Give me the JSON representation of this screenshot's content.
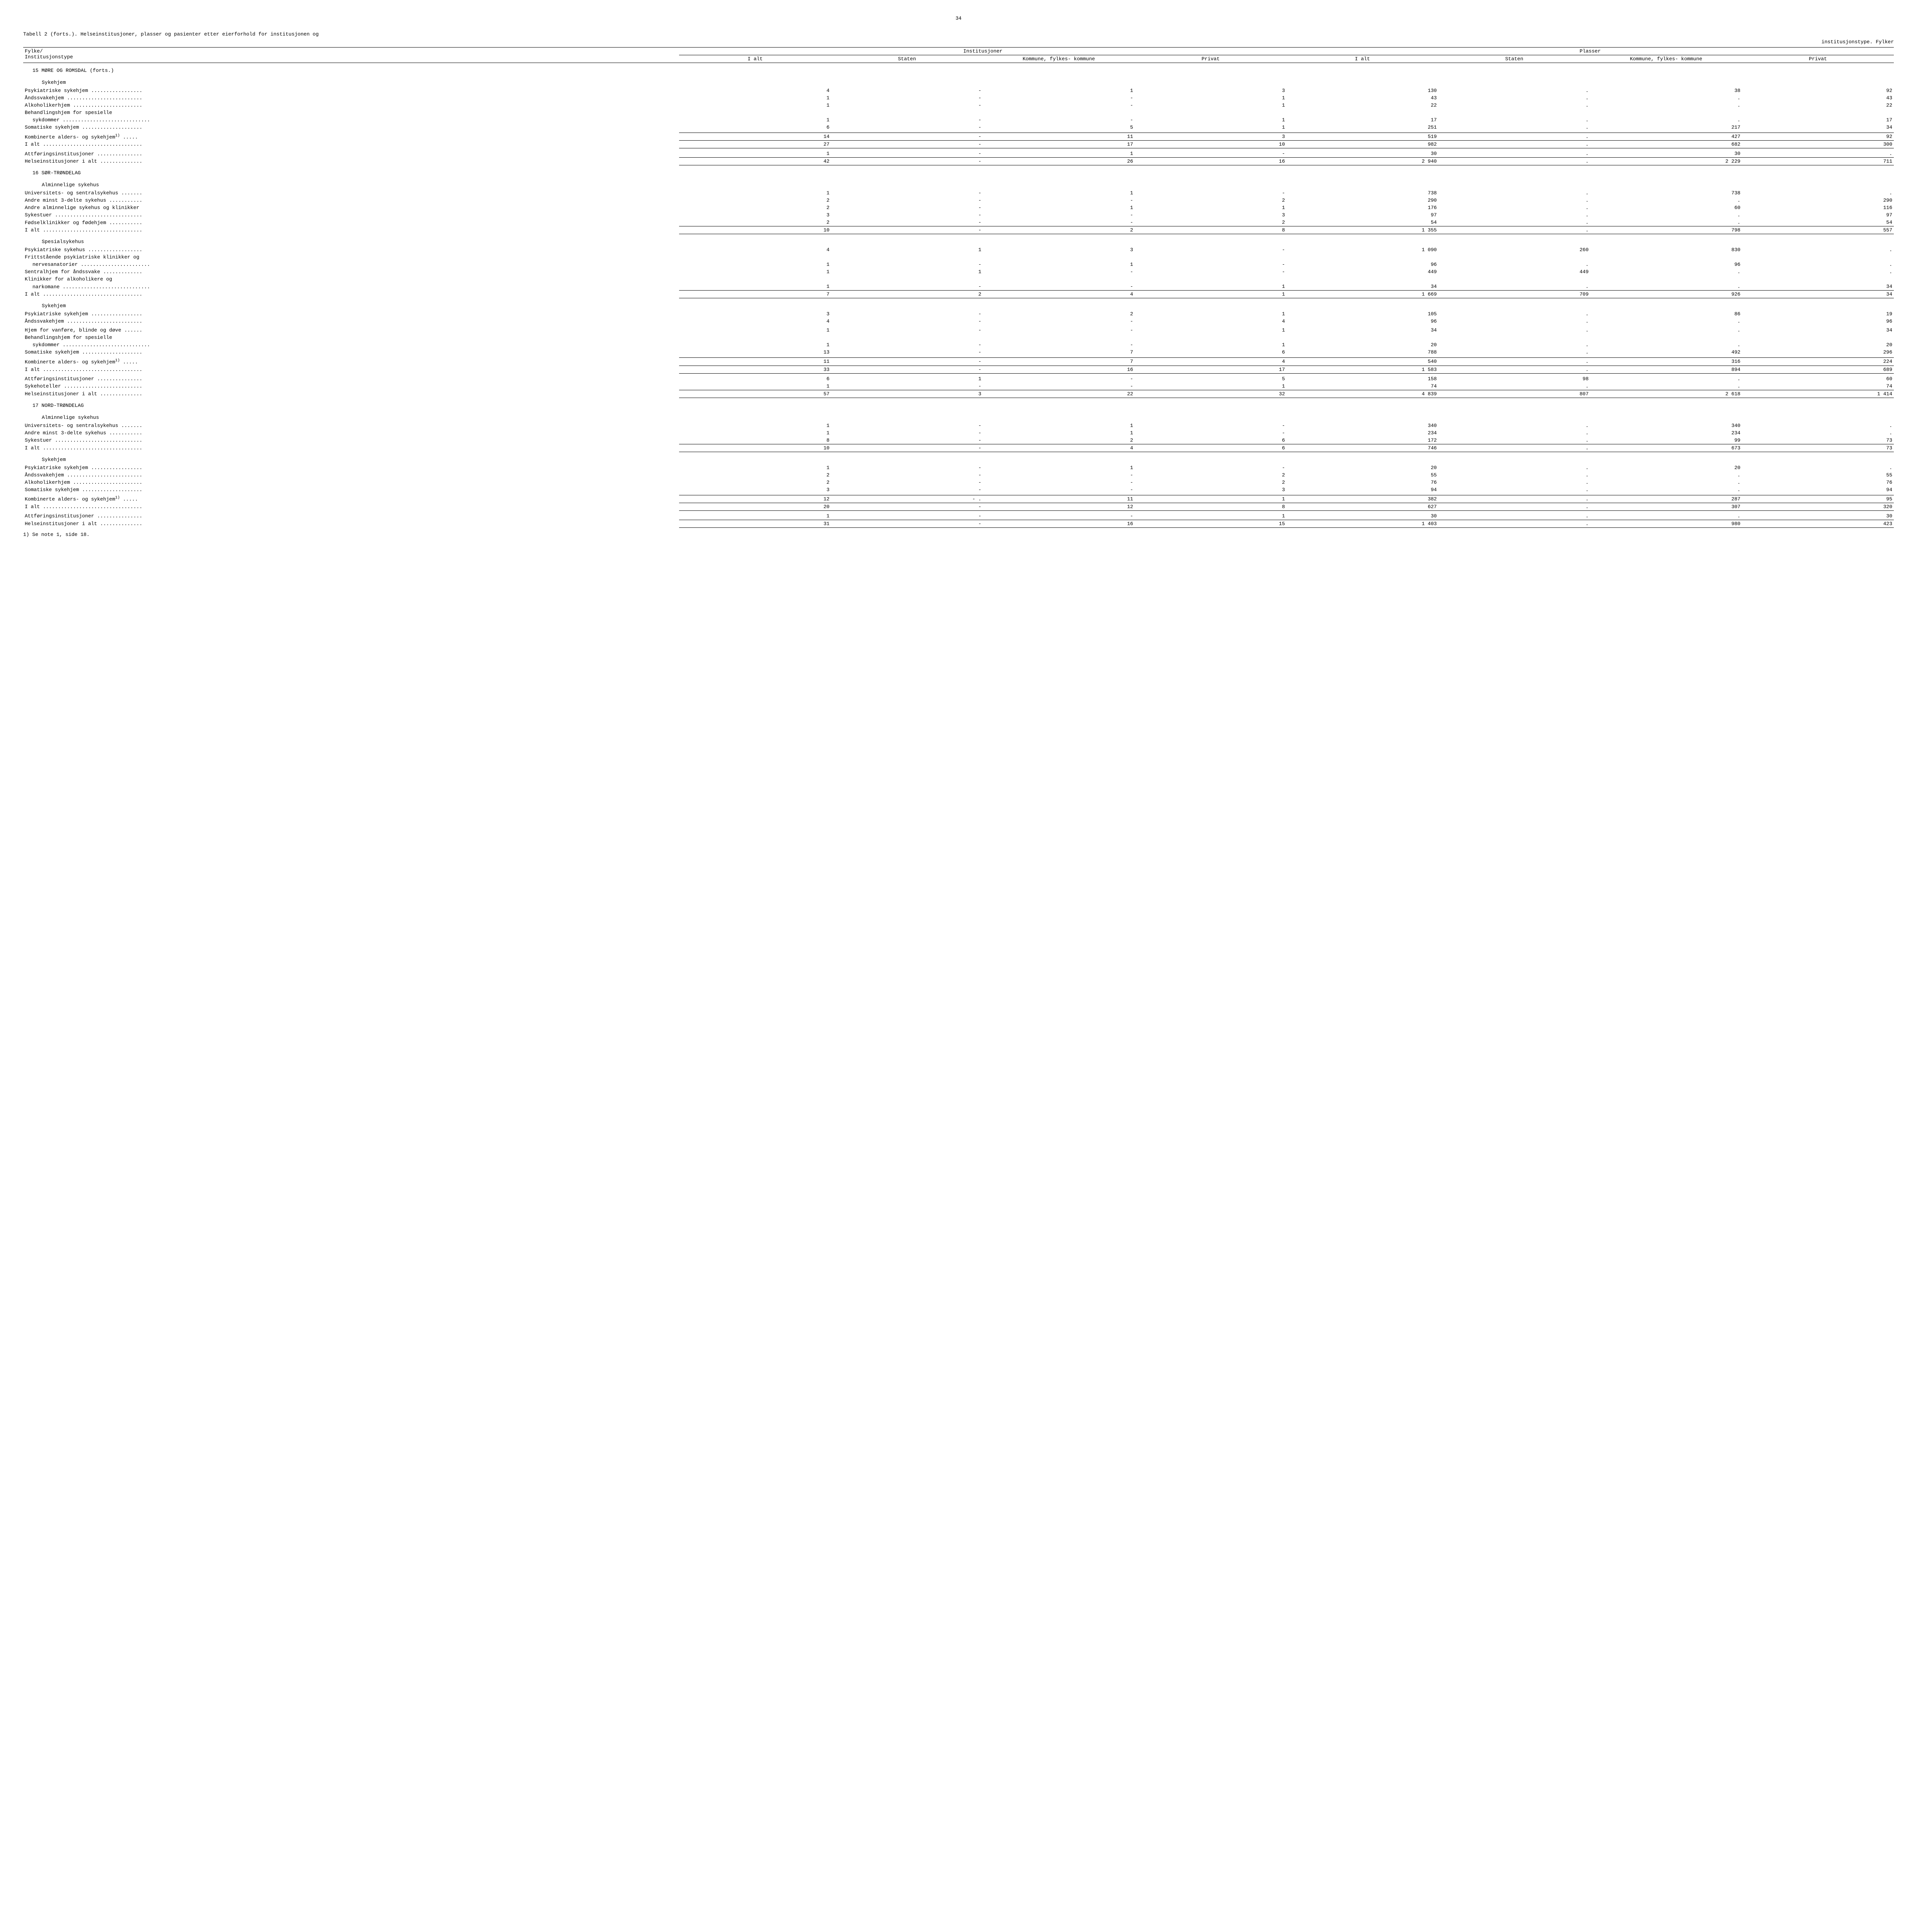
{
  "page_number": "34",
  "title_line1": "Tabell 2 (forts.).  Helseinstitusjoner, plasser og pasienter etter eierforhold for institusjonen og",
  "title_line2": "institusjonstype.  Fylker",
  "header": {
    "fylke": "Fylke/",
    "institusjonstype": "Institusjonstype",
    "group1": "Institusjoner",
    "group2": "Plasser",
    "cols": [
      "I alt",
      "Staten",
      "Kommune, fylkes- kommune",
      "Privat",
      "I alt",
      "Staten",
      "Kommune, fylkes- kommune",
      "Privat"
    ]
  },
  "footnote_ref": "1)",
  "footnote": "1) Se note 1, side 18.",
  "labels": {
    "sec15": "15  MØRE OG ROMSDAL (forts.)",
    "sec16": "16  SØR-TRØNDELAG",
    "sec17": "17  NORD-TRØNDELAG",
    "sykehjem": "Sykehjem",
    "alminnelige_sykehus": "Alminnelige sykehus",
    "spesialsykehus": "Spesialsykehus",
    "psyk_sykehjem": "Psykiatriske sykehjem",
    "andssvakehjem": "Åndssvakehjem",
    "alkoholikerhjem": "Alkoholikerhjem",
    "beh_spesielle": "Behandlingshjem for spesielle",
    "sykdommer": "sykdommer",
    "som_sykehjem": "Somatiske sykehjem",
    "komb_alders": "Kombinerte alders- og sykehjem",
    "i_alt": "I alt",
    "attforing": "Attføringsinstitusjoner",
    "helse_ialt": "Helseinstitusjoner i alt",
    "univ_sentral": "Universitets- og sentralsykehus",
    "andre_3delte": "Andre minst 3-delte sykehus",
    "andre_alm": "Andre alminnelige sykehus og klinikker",
    "sykestuer": "Sykestuer",
    "fodsel": "Fødselklinikker og fødehjem",
    "psyk_sykehus": "Psykiatriske sykehus",
    "fritt_psyk": "Frittstående psykiatriske klinikker og",
    "nervesanatorier": "nervesanatorier",
    "sentral_andssvake": "Sentralhjem for åndssvake",
    "klinikker_alk": "Klinikker for alkoholikere og",
    "narkomane": "narkomane",
    "hjem_vanfore": "Hjem for vanføre, blinde og døve",
    "sykehoteller": "Sykehoteller"
  },
  "rows": [
    {
      "type": "section",
      "label": "sec15"
    },
    {
      "type": "sub",
      "label": "sykehjem"
    },
    {
      "type": "data",
      "label": "psyk_sykehjem",
      "d": [
        "4",
        "-",
        "1",
        "3",
        "130",
        ".",
        "38",
        "92"
      ]
    },
    {
      "type": "data",
      "label": "andssvakehjem",
      "d": [
        "1",
        "-",
        "-",
        "1",
        "43",
        ".",
        ".",
        "43"
      ]
    },
    {
      "type": "data",
      "label": "alkoholikerhjem",
      "d": [
        "1",
        "-",
        "-",
        "1",
        "22",
        ".",
        ".",
        "22"
      ]
    },
    {
      "type": "plain",
      "label": "beh_spesielle",
      "d": [
        "",
        "",
        "",
        "",
        "",
        "",
        "",
        ""
      ]
    },
    {
      "type": "data_cont",
      "label": "sykdommer",
      "d": [
        "1",
        "-",
        "-",
        "1",
        "17",
        ".",
        ".",
        "17"
      ]
    },
    {
      "type": "data",
      "label": "som_sykehjem",
      "d": [
        "6",
        "-",
        "5",
        "1",
        "251",
        ".",
        "217",
        "34"
      ]
    },
    {
      "type": "space"
    },
    {
      "type": "data_sup",
      "label": "komb_alders",
      "d": [
        "14",
        "-",
        "11",
        "3",
        "519",
        ".",
        "427",
        "92"
      ],
      "rule": "both"
    },
    {
      "type": "data",
      "label": "i_alt",
      "d": [
        "27",
        "-",
        "17",
        "10",
        "982",
        ".",
        "682",
        "300"
      ],
      "rule": "bottom"
    },
    {
      "type": "space"
    },
    {
      "type": "data",
      "label": "attforing",
      "d": [
        "1",
        "-",
        "1",
        "-",
        "30",
        ".",
        "30",
        "."
      ],
      "rule": "bottom"
    },
    {
      "type": "data",
      "label": "helse_ialt",
      "d": [
        "42",
        "-",
        "26",
        "16",
        "2 940",
        ".",
        "2 229",
        "711"
      ],
      "rule": "bottom"
    },
    {
      "type": "section",
      "label": "sec16"
    },
    {
      "type": "sub",
      "label": "alminnelige_sykehus"
    },
    {
      "type": "data",
      "label": "univ_sentral",
      "d": [
        "1",
        "-",
        "1",
        "-",
        "738",
        ".",
        "738",
        "."
      ]
    },
    {
      "type": "data",
      "label": "andre_3delte",
      "d": [
        "2",
        "-",
        "-",
        "2",
        "290",
        ".",
        ".",
        "290"
      ]
    },
    {
      "type": "plain_data",
      "label": "andre_alm",
      "d": [
        "2",
        "-",
        "1",
        "1",
        "176",
        ".",
        "60",
        "116"
      ]
    },
    {
      "type": "data",
      "label": "sykestuer",
      "d": [
        "3",
        "-",
        "-",
        "3",
        "97",
        ".",
        ".",
        "97"
      ]
    },
    {
      "type": "data",
      "label": "fodsel",
      "d": [
        "2",
        "-",
        "-",
        "2",
        "54",
        ".",
        ".",
        "54"
      ],
      "rule": "bottom"
    },
    {
      "type": "data",
      "label": "i_alt",
      "d": [
        "10",
        "-",
        "2",
        "8",
        "1 355",
        ".",
        "798",
        "557"
      ],
      "rule": "bottom"
    },
    {
      "type": "sub",
      "label": "spesialsykehus"
    },
    {
      "type": "data",
      "label": "psyk_sykehus",
      "d": [
        "4",
        "1",
        "3",
        "-",
        "1 090",
        "260",
        "830",
        "."
      ]
    },
    {
      "type": "plain",
      "label": "fritt_psyk",
      "d": [
        "",
        "",
        "",
        "",
        "",
        "",
        "",
        ""
      ]
    },
    {
      "type": "data_cont",
      "label": "nervesanatorier",
      "d": [
        "1",
        "-",
        "1",
        "-",
        "96",
        ".",
        "96",
        "."
      ]
    },
    {
      "type": "data",
      "label": "sentral_andssvake",
      "d": [
        "1",
        "1",
        "-",
        "-",
        "449",
        "449",
        ".",
        "."
      ]
    },
    {
      "type": "plain",
      "label": "klinikker_alk",
      "d": [
        "",
        "",
        "",
        "",
        "",
        "",
        "",
        ""
      ]
    },
    {
      "type": "data_cont",
      "label": "narkomane",
      "d": [
        "1",
        "-",
        "-",
        "1",
        "34",
        ".",
        ".",
        "34"
      ],
      "rule": "bottom"
    },
    {
      "type": "data",
      "label": "i_alt",
      "d": [
        "7",
        "2",
        "4",
        "1",
        "1 669",
        "709",
        "926",
        "34"
      ],
      "rule": "bottom"
    },
    {
      "type": "sub",
      "label": "sykehjem"
    },
    {
      "type": "data",
      "label": "psyk_sykehjem",
      "d": [
        "3",
        "-",
        "2",
        "1",
        "105",
        ".",
        "86",
        "19"
      ]
    },
    {
      "type": "data",
      "label": "andssvakehjem",
      "d": [
        "4",
        "-",
        "-",
        "4",
        "96",
        ".",
        ".",
        "96"
      ]
    },
    {
      "type": "space"
    },
    {
      "type": "data",
      "label": "hjem_vanfore",
      "d": [
        "1",
        "-",
        "-",
        "1",
        "34",
        ".",
        ".",
        "34"
      ]
    },
    {
      "type": "plain",
      "label": "beh_spesielle",
      "d": [
        "",
        "",
        "",
        "",
        "",
        "",
        "",
        ""
      ]
    },
    {
      "type": "data_cont",
      "label": "sykdommer",
      "d": [
        "1",
        "-",
        "-",
        "1",
        "20",
        ".",
        ".",
        "20"
      ]
    },
    {
      "type": "data",
      "label": "som_sykehjem",
      "d": [
        "13",
        "-",
        "7",
        "6",
        "788",
        ".",
        "492",
        "296"
      ]
    },
    {
      "type": "space"
    },
    {
      "type": "data_sup",
      "label": "komb_alders",
      "d": [
        "11",
        "-",
        "7",
        "4",
        "540",
        ".",
        "316",
        "224"
      ],
      "rule": "both"
    },
    {
      "type": "data",
      "label": "i_alt",
      "d": [
        "33",
        "-",
        "16",
        "17",
        "1 583",
        ".",
        "894",
        "689"
      ],
      "rule": "bottom"
    },
    {
      "type": "space"
    },
    {
      "type": "data",
      "label": "attforing",
      "d": [
        "6",
        "1",
        "-",
        "5",
        "158",
        "98",
        ".",
        "60"
      ]
    },
    {
      "type": "data",
      "label": "sykehoteller",
      "d": [
        "1",
        "-",
        "-",
        "1",
        "74",
        ".",
        ".",
        "74"
      ],
      "rule": "bottom"
    },
    {
      "type": "data",
      "label": "helse_ialt",
      "d": [
        "57",
        "3",
        "22",
        "32",
        "4 839",
        "807",
        "2 618",
        "1 414"
      ],
      "rule": "bottom"
    },
    {
      "type": "section",
      "label": "sec17"
    },
    {
      "type": "sub",
      "label": "alminnelige_sykehus"
    },
    {
      "type": "data",
      "label": "univ_sentral",
      "d": [
        "1",
        "-",
        "1",
        "-",
        "340",
        ".",
        "340",
        "."
      ]
    },
    {
      "type": "data",
      "label": "andre_3delte",
      "d": [
        "1",
        "-",
        "1",
        "-",
        "234",
        ".",
        "234",
        "."
      ]
    },
    {
      "type": "data",
      "label": "sykestuer",
      "d": [
        "8",
        "-",
        "2",
        "6",
        "172",
        ".",
        "99",
        "73"
      ],
      "rule": "bottom"
    },
    {
      "type": "data",
      "label": "i_alt",
      "d": [
        "10",
        "-",
        "4",
        "6",
        "746",
        ".",
        "673",
        "73"
      ],
      "rule": "bottom"
    },
    {
      "type": "sub",
      "label": "sykehjem"
    },
    {
      "type": "data",
      "label": "psyk_sykehjem",
      "d": [
        "1",
        "-",
        "1",
        "-",
        "20",
        ".",
        "20",
        "."
      ]
    },
    {
      "type": "data",
      "label": "andssvakehjem",
      "d": [
        "2",
        "-",
        "-",
        "2",
        "55",
        ".",
        ".",
        "55"
      ]
    },
    {
      "type": "data",
      "label": "alkoholikerhjem",
      "d": [
        "2",
        "-",
        "-",
        "2",
        "76",
        ".",
        ".",
        "76"
      ]
    },
    {
      "type": "data",
      "label": "som_sykehjem",
      "d": [
        "3",
        "-",
        "-",
        "3",
        "94",
        ".",
        ".",
        "94"
      ]
    },
    {
      "type": "space"
    },
    {
      "type": "data_sup",
      "label": "komb_alders",
      "d": [
        "12",
        "- .",
        "11",
        "1",
        "382",
        ".",
        "287",
        "95"
      ],
      "rule": "both"
    },
    {
      "type": "data",
      "label": "i_alt",
      "d": [
        "20",
        "-",
        "12",
        "8",
        "627",
        ".",
        "307",
        "320"
      ],
      "rule": "bottom"
    },
    {
      "type": "space"
    },
    {
      "type": "data",
      "label": "attforing",
      "d": [
        "1",
        "-",
        "-",
        "1",
        "30",
        ".",
        ".",
        "30"
      ],
      "rule": "bottom"
    },
    {
      "type": "data",
      "label": "helse_ialt",
      "d": [
        "31",
        "-",
        "16",
        "15",
        "1 403",
        ".",
        "980",
        "423"
      ],
      "rule": "bottom"
    }
  ]
}
